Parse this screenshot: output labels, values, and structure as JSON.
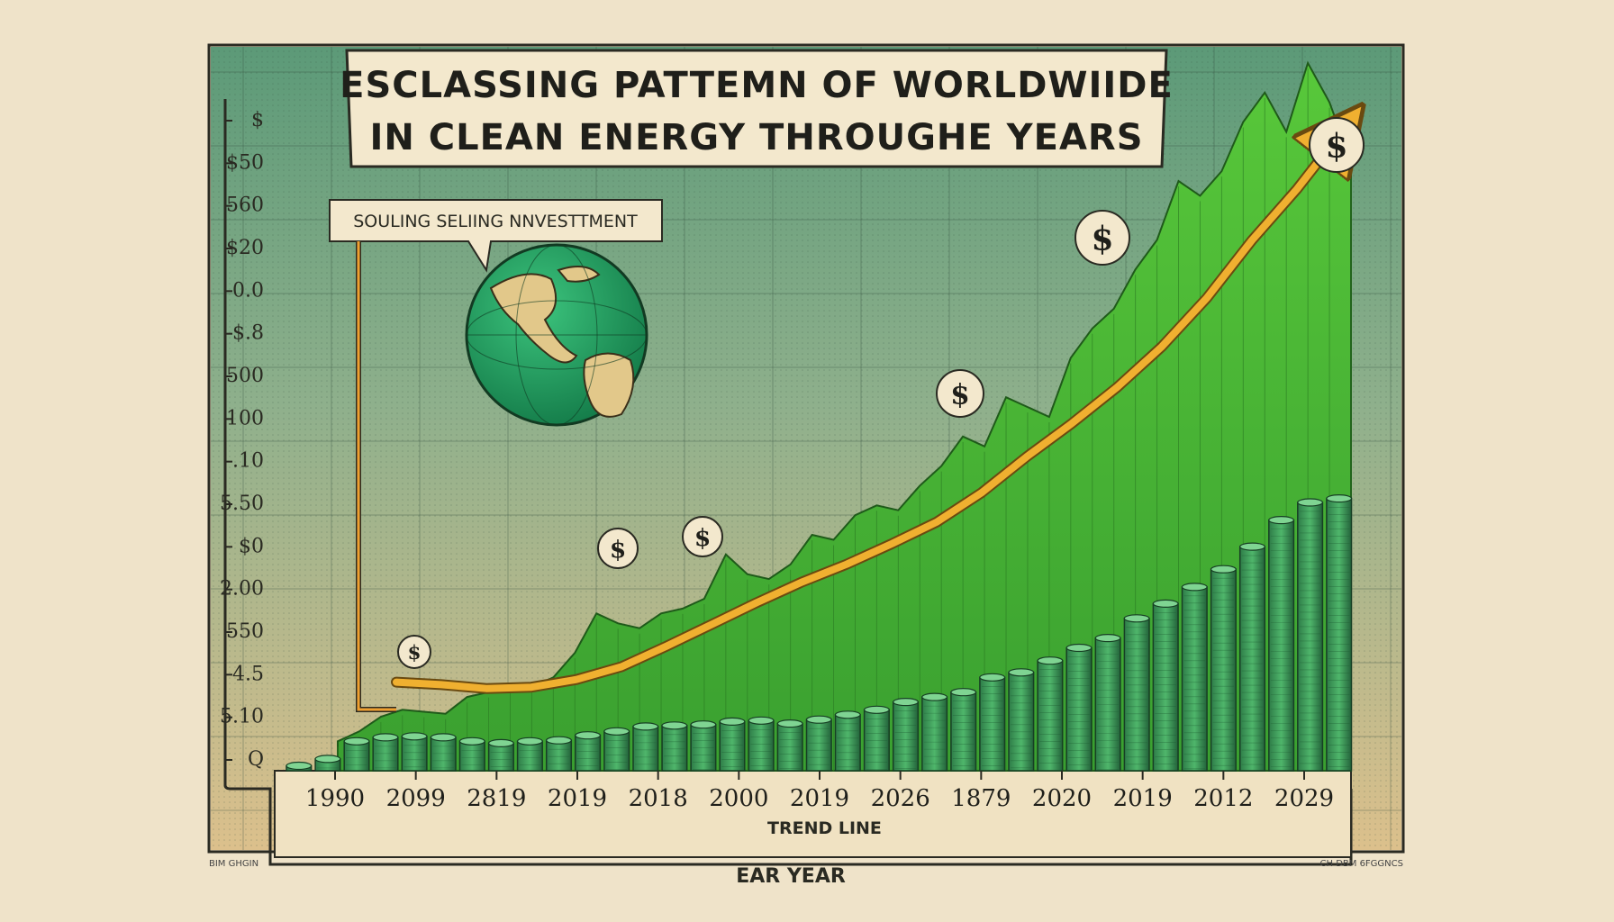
{
  "chart_data": {
    "type": "bar",
    "title_lines": [
      "ESCLASSING PATTEMN OF WORLDWIIDE",
      "IN  CLEAN ENERGY THROUGHE YEARS"
    ],
    "callout": "SOULING SELIING NNVESTTMENT",
    "xlabel": "EAR YEAR",
    "legend_text": "TREND LINE",
    "y_tick_labels": [
      "$",
      "$50",
      "560",
      "$20",
      "0.0",
      "$.8",
      "500",
      "100",
      ".10",
      "5.50",
      "$0",
      "2.00",
      "550",
      "4.5",
      "5.10",
      "Q"
    ],
    "x_tick_labels": [
      "1990",
      "2099",
      "2819",
      "2019",
      "2018",
      "2000",
      "2019",
      "2026",
      "1879",
      "2020",
      "2019",
      "2012",
      "2029"
    ],
    "bar_values": [
      5,
      12,
      30,
      34,
      35,
      34,
      30,
      28,
      30,
      31,
      36,
      40,
      45,
      46,
      47,
      50,
      51,
      48,
      52,
      57,
      62,
      70,
      75,
      80,
      95,
      100,
      112,
      125,
      135,
      155,
      170,
      187,
      205,
      228,
      255,
      273,
      277
    ],
    "area_values": [
      30,
      40,
      55,
      62,
      60,
      58,
      75,
      80,
      88,
      85,
      95,
      120,
      160,
      150,
      145,
      160,
      165,
      175,
      220,
      200,
      195,
      210,
      240,
      235,
      260,
      270,
      265,
      290,
      310,
      340,
      330,
      380,
      370,
      360,
      420,
      450,
      470,
      510,
      540,
      600,
      585,
      610,
      660,
      690,
      650,
      720,
      680,
      620
    ],
    "trend_values": [
      20,
      18,
      15,
      16,
      22,
      32,
      48,
      65,
      82,
      98,
      112,
      128,
      145,
      168,
      196,
      222,
      250,
      282,
      320,
      365,
      405,
      450
    ],
    "dollar_markers": [
      "$",
      "$",
      "$",
      "$",
      "$",
      "$"
    ],
    "credits": [
      "BIM GHGIN",
      "CH DBM 6FGGNCS"
    ],
    "colors": {
      "background": "#efe3c9",
      "plot_top": "#5e9a78",
      "plot_bottom": "#d8c08a",
      "bar": "#3d9a5a",
      "area": "#4fc236",
      "trend": "#f0b030",
      "globe_ocean": "#1fa866",
      "globe_land": "#e2c88a"
    }
  }
}
